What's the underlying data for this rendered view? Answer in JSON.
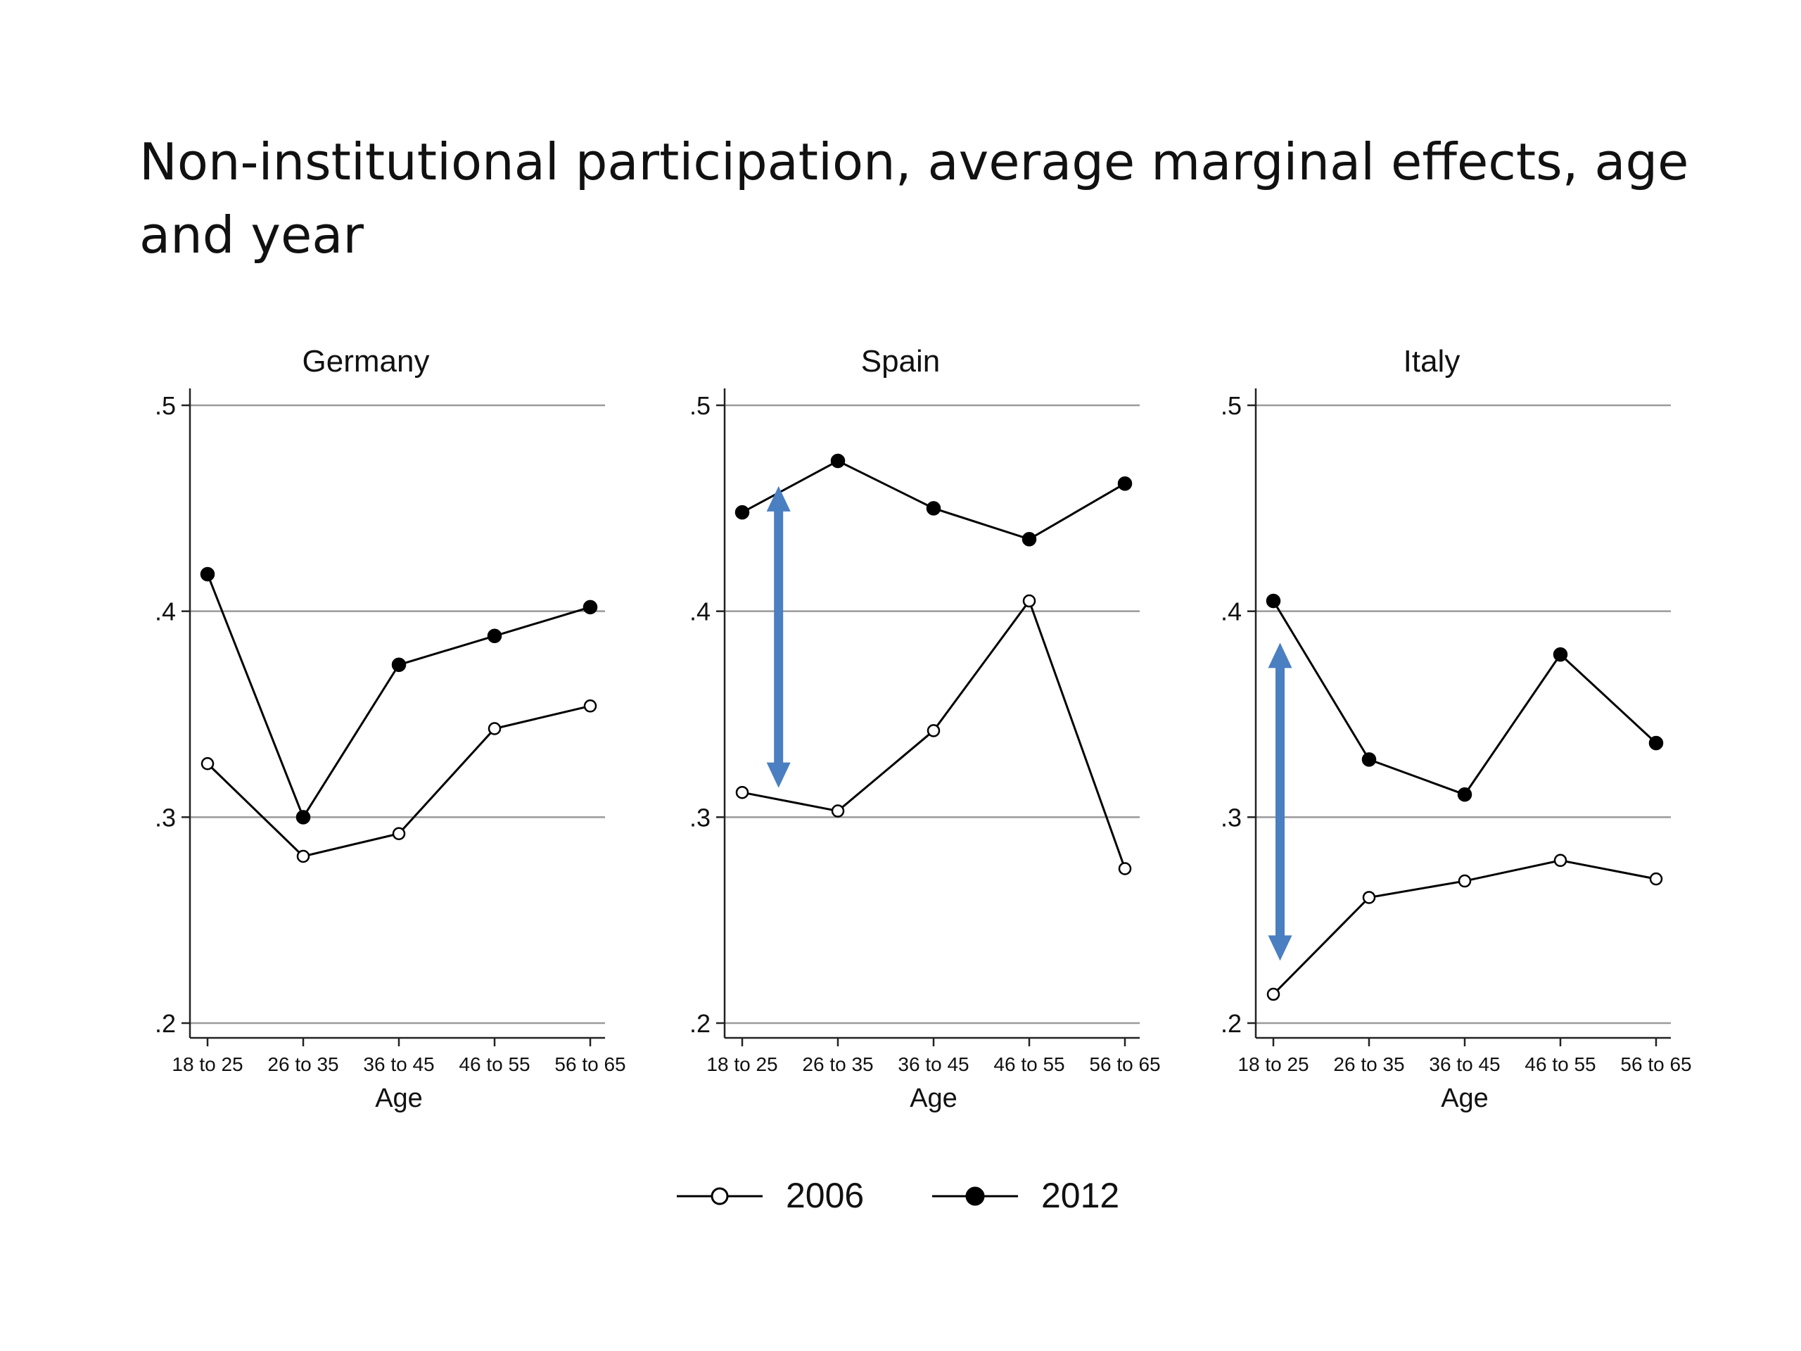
{
  "slide": {
    "title": "Non-institutional participation, average marginal effects, age and year"
  },
  "chart_data": {
    "type": "line",
    "title": "Non-institutional participation, average marginal effects, age and year",
    "xlabel": "Age",
    "ylabel": "",
    "ylim": [
      0.2,
      0.5
    ],
    "yticks": [
      0.2,
      0.3,
      0.4,
      0.5
    ],
    "ytick_labels": [
      ".2",
      ".3",
      ".4",
      ".5"
    ],
    "grid": true,
    "legend": "bottom-center",
    "categories": [
      "18 to 25",
      "26 to 35",
      "36 to 45",
      "46 to 55",
      "56 to 65"
    ],
    "series_style": {
      "2006": "hollow-circle",
      "2012": "filled-circle"
    },
    "annotation_color": "#4a7fc1",
    "panels": [
      {
        "title": "Germany",
        "series": [
          {
            "name": "2006",
            "values": [
              0.326,
              0.281,
              0.292,
              0.343,
              0.354
            ]
          },
          {
            "name": "2012",
            "values": [
              0.418,
              0.3,
              0.374,
              0.388,
              0.402
            ]
          }
        ],
        "arrow": null
      },
      {
        "title": "Spain",
        "series": [
          {
            "name": "2006",
            "values": [
              0.312,
              0.303,
              0.342,
              0.405,
              0.275
            ]
          },
          {
            "name": "2012",
            "values": [
              0.448,
              0.473,
              0.45,
              0.435,
              0.462
            ]
          }
        ],
        "arrow": {
          "x_category_index": 0.38,
          "y_from": 0.458,
          "y_to": 0.317
        }
      },
      {
        "title": "Italy",
        "series": [
          {
            "name": "2006",
            "values": [
              0.214,
              0.261,
              0.269,
              0.279,
              0.27
            ]
          },
          {
            "name": "2012",
            "values": [
              0.405,
              0.328,
              0.311,
              0.379,
              0.336
            ]
          }
        ],
        "arrow": {
          "x_category_index": 0.07,
          "y_from": 0.382,
          "y_to": 0.233
        }
      }
    ]
  }
}
